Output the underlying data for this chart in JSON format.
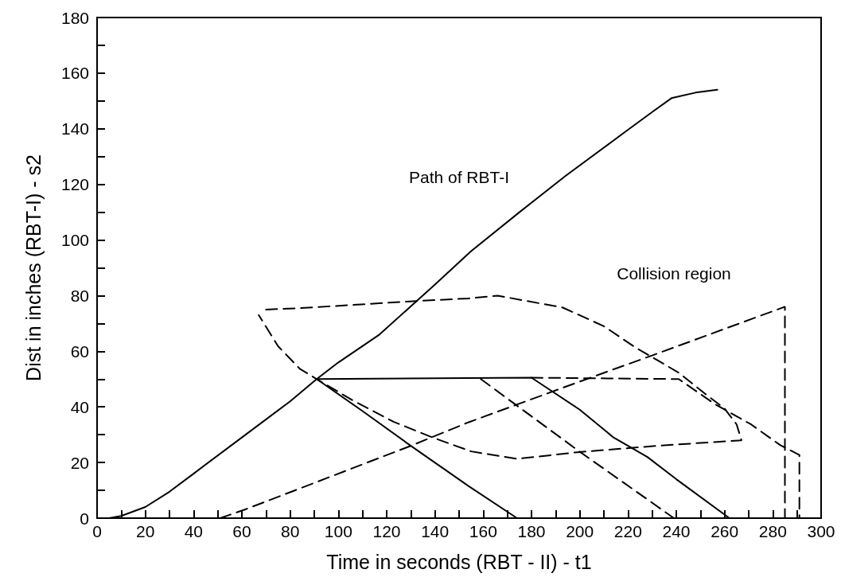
{
  "chart_data": {
    "type": "line",
    "xlabel": "Time in seconds (RBT - II) - t1",
    "ylabel": "Dist in inches (RBT-I) - s2",
    "xlim": [
      0,
      300
    ],
    "ylim": [
      0,
      180
    ],
    "xticks": [
      0,
      {
        "value": 10,
        "label": null
      },
      20,
      {
        "value": 30,
        "label": null
      },
      40,
      {
        "value": 50,
        "label": null
      },
      60,
      {
        "value": 70,
        "label": null
      },
      80,
      {
        "value": 90,
        "label": null
      },
      100,
      {
        "value": 110,
        "label": null
      },
      120,
      {
        "value": 130,
        "label": null
      },
      140,
      {
        "value": 150,
        "label": null
      },
      160,
      {
        "value": 170,
        "label": null
      },
      180,
      {
        "value": 190,
        "label": null
      },
      200,
      {
        "value": 210,
        "label": null
      },
      220,
      {
        "value": 230,
        "label": null
      },
      240,
      {
        "value": 250,
        "label": null
      },
      260,
      {
        "value": 270,
        "label": null
      },
      280,
      {
        "value": 290,
        "label": null
      },
      300
    ],
    "yticks": [
      0,
      {
        "value": 10,
        "label": null
      },
      20,
      {
        "value": 30,
        "label": null
      },
      40,
      {
        "value": 50,
        "label": null
      },
      60,
      {
        "value": 70,
        "label": null
      },
      80,
      {
        "value": 90,
        "label": null
      },
      100,
      {
        "value": 110,
        "label": null
      },
      120,
      {
        "value": 130,
        "label": null
      },
      140,
      {
        "value": 150,
        "label": null
      },
      160,
      {
        "value": 170,
        "label": null
      },
      180
    ],
    "marker": "none",
    "series": [
      {
        "color": "#000000",
        "line_style": "solid",
        "x": [
          0,
          5,
          10,
          20,
          30,
          40,
          60,
          80,
          91,
          100,
          117,
          140,
          155,
          175,
          194,
          219,
          230,
          238,
          248,
          257
        ],
        "values": [
          0,
          0,
          0.8,
          4,
          9.5,
          16,
          29,
          42,
          50,
          56,
          66,
          84,
          96,
          110,
          123,
          139,
          146,
          151,
          153,
          154
        ]
      },
      {
        "color": "#000000",
        "line_style": "solid",
        "x": [
          91,
          180,
          200,
          214,
          228,
          240,
          262
        ],
        "values": [
          50,
          50.5,
          39,
          29,
          22,
          14,
          0
        ]
      },
      {
        "color": "#000000",
        "line_style": "solid",
        "x": [
          91,
          110,
          130,
          154,
          174
        ],
        "values": [
          50,
          38.5,
          26,
          11.5,
          0
        ]
      },
      {
        "color": "#000000",
        "line_style": "dashed",
        "x": [
          70,
          84,
          131,
          154,
          166,
          193,
          210,
          223,
          241,
          253,
          260,
          265,
          267,
          232,
          199,
          174,
          155,
          139,
          123,
          106,
          91,
          84,
          75,
          67
        ],
        "values": [
          75,
          75.5,
          78,
          79,
          80,
          75.7,
          69,
          61.4,
          52.3,
          44,
          39.4,
          33.7,
          28,
          26,
          23.7,
          21.3,
          24,
          29,
          34.6,
          42.3,
          50,
          53.7,
          61.8,
          73
        ]
      },
      {
        "color": "#000000",
        "line_style": "dashed",
        "x": [
          51,
          61,
          91,
          130,
          154,
          206,
          230,
          285,
          285
        ],
        "values": [
          0,
          3,
          13,
          26,
          34.5,
          51,
          58.5,
          76,
          0
        ]
      },
      {
        "color": "#000000",
        "line_style": "dashed",
        "x": [
          180,
          241,
          256,
          271,
          283,
          291,
          291
        ],
        "values": [
          50.5,
          50,
          41,
          33.7,
          26.3,
          22.7,
          0
        ]
      },
      {
        "color": "#000000",
        "line_style": "dashed",
        "x": [
          159,
          199,
          239
        ],
        "values": [
          50,
          24.5,
          0
        ]
      }
    ],
    "annotations": [
      "Path of RBT-I",
      "Collision region"
    ]
  }
}
